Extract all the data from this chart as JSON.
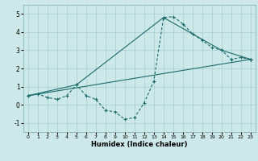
{
  "xlabel": "Humidex (Indice chaleur)",
  "xlim": [
    -0.5,
    23.5
  ],
  "ylim": [
    -1.5,
    5.5
  ],
  "xticks": [
    0,
    1,
    2,
    3,
    4,
    5,
    6,
    7,
    8,
    9,
    10,
    11,
    12,
    13,
    14,
    15,
    16,
    17,
    18,
    19,
    20,
    21,
    22,
    23
  ],
  "yticks": [
    -1,
    0,
    1,
    2,
    3,
    4,
    5
  ],
  "bg_color": "#cce8e8",
  "grid_color": "#aacece",
  "line_color": "#1a6b6b",
  "line1_x": [
    0,
    1,
    2,
    3,
    4,
    5,
    6,
    7,
    8,
    9,
    10,
    11,
    12,
    13,
    14,
    15,
    16,
    17,
    18,
    19,
    20,
    21,
    22,
    23
  ],
  "line1_y": [
    0.5,
    0.6,
    0.4,
    0.3,
    0.5,
    1.1,
    0.5,
    0.3,
    -0.3,
    -0.4,
    -0.8,
    -0.7,
    0.1,
    1.3,
    4.8,
    4.85,
    4.45,
    3.9,
    3.55,
    3.15,
    3.0,
    2.5,
    2.6,
    2.5
  ],
  "line2_x": [
    0,
    23
  ],
  "line2_y": [
    0.5,
    2.5
  ],
  "line3_x": [
    0,
    5,
    14,
    20,
    23
  ],
  "line3_y": [
    0.5,
    1.1,
    4.8,
    3.0,
    2.5
  ]
}
